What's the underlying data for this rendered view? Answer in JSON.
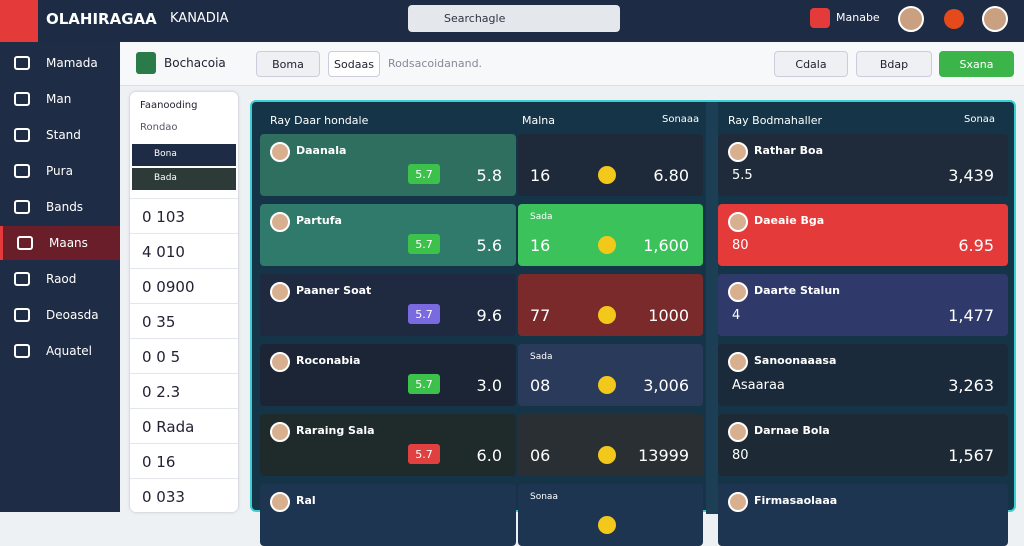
{
  "header": {
    "brand": "OLAHIRAGAA",
    "region": "KANADIA",
    "search": "Searchagle",
    "user": "Manabe"
  },
  "sidebar": [
    "Mamada",
    "Man",
    "Stand",
    "Pura",
    "Bands",
    "Maans",
    "Raod",
    "Deoasda",
    "Aquatel"
  ],
  "topbar": {
    "title": "Bochacoia",
    "tab1": "Boma",
    "tab2": "Sodaas",
    "placeholder": "Rodsacoidanand.",
    "btn1": "Cdala",
    "btn2": "Bdap",
    "btn3": "Sxana"
  },
  "filter": {
    "title": "Faanooding",
    "subtitle": "Rondao",
    "chips": [
      "Bona",
      "Bada"
    ],
    "rows": [
      "0 103",
      "4 010",
      "0 0900",
      "0 35",
      "0 0 5",
      "0 2.3",
      "0 Rada",
      "0 16",
      "0 033"
    ]
  },
  "board": {
    "left_title": "Ray Daar hondale",
    "mid_title": "Malna",
    "mid_tag": "Sonaaa",
    "right_title": "Ray Bodmahaller",
    "right_tag": "Sonaa",
    "rows": [
      {
        "left": {
          "name": "Daanala",
          "odd": "5.7",
          "value": "5.8"
        },
        "mid": {
          "label": "",
          "num": "16",
          "value": "6.80"
        },
        "right": {
          "name": "Rathar Boa",
          "odd": "5.5",
          "value": "3,439"
        }
      },
      {
        "left": {
          "name": "Partufa",
          "odd": "5.7",
          "value": "5.6"
        },
        "mid": {
          "label": "Sada",
          "num": "16",
          "value": "1,600"
        },
        "right": {
          "name": "Daeaie Bga",
          "odd": "80",
          "value": "6.95"
        }
      },
      {
        "left": {
          "name": "Paaner Soat",
          "odd": "5.7",
          "value": "9.6"
        },
        "mid": {
          "label": "",
          "num": "77",
          "value": "1000"
        },
        "right": {
          "name": "Daarte Stalun",
          "odd": "4",
          "value": "1,477"
        }
      },
      {
        "left": {
          "name": "Roconabia",
          "odd": "5.7",
          "value": "3.0"
        },
        "mid": {
          "label": "Sada",
          "num": "08",
          "value": "3,006"
        },
        "right": {
          "name": "Sanoonaaasa",
          "odd": "Asaaraa",
          "value": "3,263"
        }
      },
      {
        "left": {
          "name": "Raraing Sala",
          "odd": "5.7",
          "value": "6.0"
        },
        "mid": {
          "label": "",
          "num": "06",
          "value": "13999"
        },
        "right": {
          "name": "Darnae Bola",
          "odd": "80",
          "value": "1,567"
        }
      },
      {
        "left": {
          "name": "Ral",
          "odd": "",
          "value": ""
        },
        "mid": {
          "label": "Sonaa",
          "num": "",
          "value": ""
        },
        "right": {
          "name": "Firmasaolaaa",
          "odd": "",
          "value": ""
        }
      }
    ]
  }
}
